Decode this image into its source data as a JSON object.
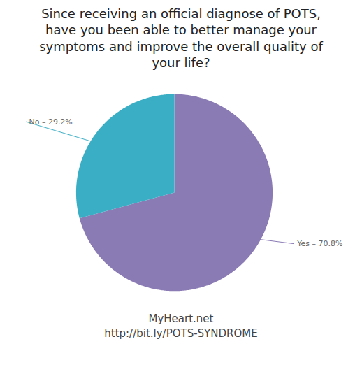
{
  "chart_data": {
    "type": "pie",
    "title": "Since receiving an official diagnose of POTS,\nhave you been able to better manage your\nsymptoms and improve the overall quality of\nyour life?",
    "categories": [
      "Yes – 70.8%",
      "No – 29.2%"
    ],
    "values": [
      70.8,
      29.2
    ],
    "colors": [
      "#8B7BB5",
      "#3AAEC5"
    ],
    "annotations": [
      "MyHeart.net",
      "http://bit.ly/POTS-SYNDROME"
    ],
    "tick_labels": false
  }
}
